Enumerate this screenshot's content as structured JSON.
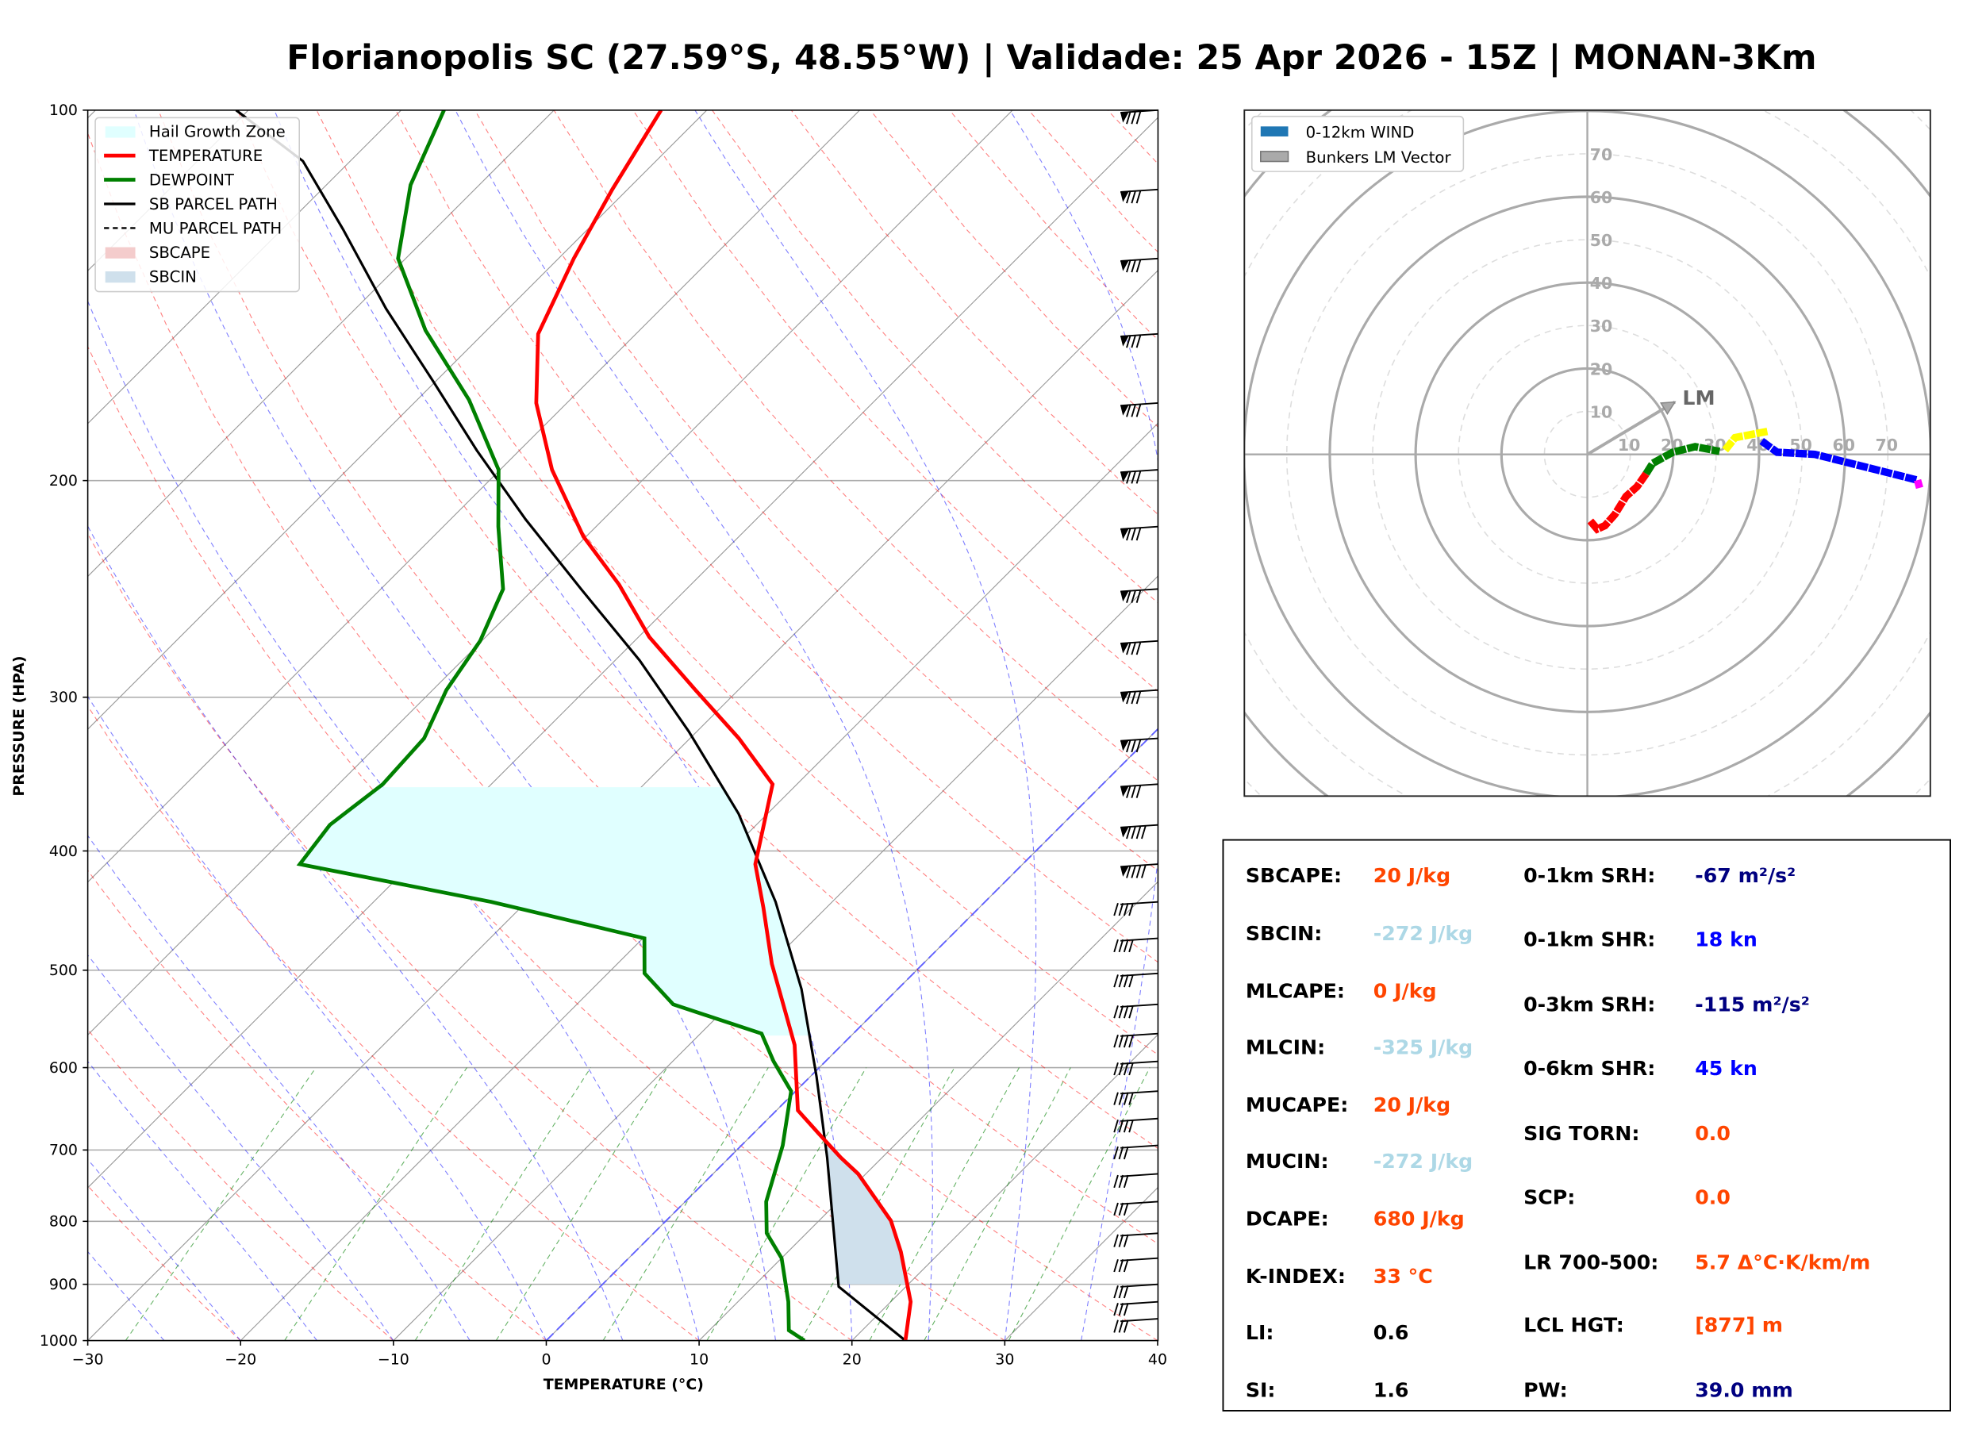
{
  "title": "Florianopolis SC (27.59°S, 48.55°W) | Validade: 25 Apr 2026 - 15Z | MONAN-3Km",
  "chart_data": [
    {
      "type": "line",
      "subtype": "skew-t",
      "xlabel": "TEMPERATURE (°C)",
      "ylabel": "PRESSURE (HPA)",
      "xlim": [
        -30,
        40
      ],
      "ylim": [
        1000,
        100
      ],
      "y_scale": "log",
      "x_ticks": [
        -30,
        -20,
        -10,
        0,
        10,
        20,
        30,
        40
      ],
      "y_ticks": [
        100,
        200,
        300,
        400,
        500,
        600,
        700,
        800,
        900,
        1000
      ],
      "grid": true,
      "legend_position": "top-left",
      "legend": [
        "Hail Growth Zone",
        "TEMPERATURE",
        "DEWPOINT",
        "SB PARCEL PATH",
        "MU PARCEL PATH",
        "SBCAPE",
        "SBCIN"
      ],
      "colors": {
        "temperature": "#ff0000",
        "dewpoint": "#008000",
        "parcel": "#000000",
        "hail": "#e0ffff",
        "sbcape": "#f4cccc",
        "sbcin": "#cfe0ec"
      },
      "series": [
        {
          "name": "TEMPERATURE",
          "pressure": [
            1000,
            930,
            847,
            799,
            732,
            710,
            678,
            650,
            575,
            494,
            445,
            410,
            353,
            324,
            296,
            268,
            243,
            222,
            196,
            173,
            152,
            132,
            116,
            100
          ],
          "values": [
            23.5,
            21.3,
            17.4,
            14.7,
            9.5,
            7.3,
            4.2,
            1.4,
            -3.1,
            -9.9,
            -14.1,
            -17.5,
            -21.6,
            -26.8,
            -32.8,
            -39.3,
            -44.7,
            -50.2,
            -56.6,
            -62,
            -66.4,
            -69,
            -71,
            -73
          ]
        },
        {
          "name": "DEWPOINT",
          "pressure": [
            1000,
            981,
            930,
            857,
            818,
            771,
            694,
            627,
            593,
            563,
            533,
            503,
            471,
            440,
            410,
            381,
            353,
            324,
            296,
            270,
            245,
            218,
            196,
            172,
            151,
            132,
            115,
            100
          ],
          "values": [
            16.9,
            15.2,
            13.3,
            10.0,
            7.4,
            5.3,
            2.7,
            -0.3,
            -3.4,
            -6.0,
            -13.7,
            -17.6,
            -19.9,
            -32.3,
            -47.3,
            -47.9,
            -47.1,
            -47.4,
            -49.1,
            -50.1,
            -52.0,
            -56.4,
            -60.1,
            -66.6,
            -74.0,
            -80.5,
            -84.5,
            -87.2
          ]
        },
        {
          "name": "SB PARCEL PATH",
          "pressure": [
            1000,
            904,
            818,
            710,
            610,
            518,
            440,
            373,
            320,
            280,
            245,
            215,
            189,
            166,
            145,
            125,
            110,
            100
          ],
          "values": [
            23.5,
            15.6,
            11.8,
            6.4,
            0.4,
            -6.3,
            -13.7,
            -21.9,
            -30.5,
            -38.4,
            -46.9,
            -55.1,
            -62.8,
            -70.2,
            -78.0,
            -86.0,
            -93.1,
            -100.8
          ]
        }
      ],
      "hail_growth_zone_hpa": [
        565,
        353
      ],
      "sbcin_layer_hpa": [
        900,
        680
      ]
    },
    {
      "type": "line",
      "subtype": "hodograph",
      "unit": "kt",
      "ring_labels": [
        "10",
        "20",
        "30",
        "40",
        "50",
        "60",
        "70"
      ],
      "legend": [
        "0-12km WIND",
        "Bunkers LM Vector"
      ],
      "legend_position": "top-left",
      "segments": [
        {
          "color": "#ff0000",
          "u": [
            0.7,
            2.3,
            4.1,
            6.4,
            9.0,
            11.6,
            13.7
          ],
          "v": [
            -15.5,
            -17.4,
            -16.6,
            -14.0,
            -9.8,
            -7.5,
            -4.5
          ]
        },
        {
          "color": "#008000",
          "u": [
            13.7,
            15.2,
            19.9,
            25.1,
            30.8
          ],
          "v": [
            -4.5,
            -2.1,
            0.5,
            1.8,
            0.7
          ]
        },
        {
          "color": "#ffff00",
          "u": [
            32.1,
            34.4,
            42.2
          ],
          "v": [
            1.0,
            3.9,
            5.4
          ]
        },
        {
          "color": "#0000ff",
          "u": [
            40.6,
            44.2,
            53.0,
            63.4,
            76.9
          ],
          "v": [
            3.1,
            0.5,
            0.0,
            -2.6,
            -6.0
          ]
        },
        {
          "color": "#ff00ff",
          "u": [
            76.9,
            77.4
          ],
          "v": [
            -6.0,
            -7.8
          ]
        }
      ],
      "bunkers_lm": {
        "label": "LM",
        "u": 20.4,
        "v": 12.2
      }
    }
  ],
  "stats": {
    "left": [
      {
        "label": "SBCAPE:",
        "value": "20 J/kg",
        "color": "#ff4500"
      },
      {
        "label": "SBCIN:",
        "value": "-272 J/kg",
        "color": "#add8e6"
      },
      {
        "label": "MLCAPE:",
        "value": "0 J/kg",
        "color": "#ff4500"
      },
      {
        "label": "MLCIN:",
        "value": "-325 J/kg",
        "color": "#add8e6"
      },
      {
        "label": "MUCAPE:",
        "value": "20 J/kg",
        "color": "#ff4500"
      },
      {
        "label": "MUCIN:",
        "value": "-272 J/kg",
        "color": "#add8e6"
      },
      {
        "label": "DCAPE:",
        "value": "680 J/kg",
        "color": "#ff4500"
      },
      {
        "label": "K-INDEX:",
        "value": "33 °C",
        "color": "#ff4500"
      },
      {
        "label": "LI:",
        "value": "0.6",
        "color": "#000000"
      },
      {
        "label": "SI:",
        "value": "1.6",
        "color": "#000000"
      }
    ],
    "right": [
      {
        "label": "0-1km SRH:",
        "value": "-67 m²/s²",
        "color": "#000080"
      },
      {
        "label": "0-1km SHR:",
        "value": "18 kn",
        "color": "#0000ff"
      },
      {
        "label": "0-3km SRH:",
        "value": "-115 m²/s²",
        "color": "#000080"
      },
      {
        "label": "0-6km SHR:",
        "value": "45 kn",
        "color": "#0000ff"
      },
      {
        "label": "SIG TORN:",
        "value": "0.0",
        "color": "#ff4500"
      },
      {
        "label": "SCP:",
        "value": "0.0",
        "color": "#ff4500"
      },
      {
        "label": "LR 700-500:",
        "value": "5.7 Δ°C·K/km/m",
        "color": "#ff4500"
      },
      {
        "label": "LCL HGT:",
        "value": "[877] m",
        "color": "#ff4500"
      },
      {
        "label": "PW:",
        "value": "39.0 mm",
        "color": "#000080"
      }
    ]
  }
}
